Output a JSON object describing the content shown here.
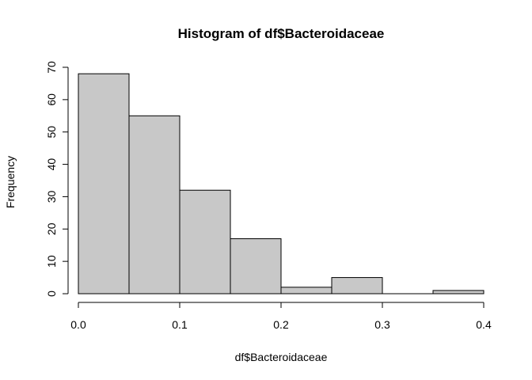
{
  "chart_data": {
    "type": "bar",
    "title": "Histogram of df$Bacteroidaceae",
    "xlabel": "df$Bacteroidaceae",
    "ylabel": "Frequency",
    "bins": [
      {
        "from": 0.0,
        "to": 0.05,
        "count": 68
      },
      {
        "from": 0.05,
        "to": 0.1,
        "count": 55
      },
      {
        "from": 0.1,
        "to": 0.15,
        "count": 32
      },
      {
        "from": 0.15,
        "to": 0.2,
        "count": 17
      },
      {
        "from": 0.2,
        "to": 0.25,
        "count": 2
      },
      {
        "from": 0.25,
        "to": 0.3,
        "count": 5
      },
      {
        "from": 0.3,
        "to": 0.35,
        "count": 0
      },
      {
        "from": 0.35,
        "to": 0.4,
        "count": 1
      }
    ],
    "xlim": [
      0,
      0.4
    ],
    "ylim": [
      0,
      70
    ],
    "xticks": [
      "0.0",
      "0.1",
      "0.2",
      "0.3",
      "0.4"
    ],
    "xtick_values": [
      0,
      0.1,
      0.2,
      0.3,
      0.4
    ],
    "yticks": [
      "0",
      "10",
      "20",
      "30",
      "40",
      "50",
      "60",
      "70"
    ],
    "ytick_values": [
      0,
      10,
      20,
      30,
      40,
      50,
      60,
      70
    ],
    "bar_fill": "#c8c8c8",
    "bar_stroke": "#000000",
    "grid": false,
    "legend": "none"
  }
}
